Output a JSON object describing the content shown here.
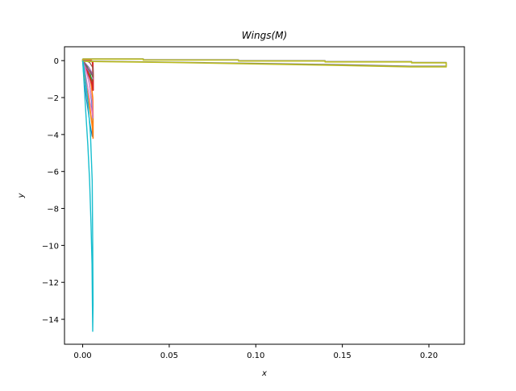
{
  "chart_data": {
    "type": "line",
    "title": "Wings(M)",
    "xlabel": "x",
    "ylabel": "y",
    "xlim": [
      -0.0105,
      0.2205
    ],
    "ylim": [
      -15.35,
      0.75
    ],
    "x_ticks": [
      0.0,
      0.05,
      0.1,
      0.15,
      0.2
    ],
    "x_tick_labels": [
      "0.00",
      "0.05",
      "0.10",
      "0.15",
      "0.20"
    ],
    "y_ticks": [
      0,
      -2,
      -4,
      -6,
      -8,
      -10,
      -12,
      -14
    ],
    "y_tick_labels": [
      "0",
      "−2",
      "−4",
      "−6",
      "−8",
      "−10",
      "−12",
      "−14"
    ],
    "grid": false,
    "legend": "none",
    "series": [
      {
        "color": "#1f77b4",
        "width": 1.2,
        "x": [
          0.0,
          0.0006,
          0.0022,
          0.0042,
          0.0055,
          0.0058,
          0.0052,
          0.0038,
          0.002,
          0.0006,
          0.0
        ],
        "y": [
          0.0,
          -0.8,
          -2.1,
          -3.4,
          -4.1,
          -3.2,
          -2.2,
          -1.2,
          -0.5,
          -0.1,
          0.0
        ]
      },
      {
        "color": "#ff7f0e",
        "width": 1.6,
        "x": [
          0.0,
          0.0008,
          0.0025,
          0.0045,
          0.0056,
          0.006,
          0.006,
          0.0058,
          0.0048,
          0.003,
          0.0012,
          0.0
        ],
        "y": [
          0.0,
          -0.6,
          -1.6,
          -2.8,
          -3.6,
          -4.2,
          -3.0,
          -2.0,
          -1.2,
          -0.5,
          -0.15,
          0.0
        ]
      },
      {
        "color": "#2ca02c",
        "width": 1.2,
        "x": [
          0.0,
          0.002,
          0.004,
          0.0055,
          0.006,
          0.0055,
          0.004,
          0.002,
          0.0
        ],
        "y": [
          0.0,
          -0.3,
          -0.8,
          -1.2,
          -1.4,
          -1.1,
          -0.6,
          -0.2,
          0.0
        ]
      },
      {
        "color": "#d62728",
        "width": 2.0,
        "x": [
          0.0,
          0.002,
          0.004,
          0.0055,
          0.006,
          0.006,
          0.0058,
          0.005,
          0.003,
          0.0012,
          0.0
        ],
        "y": [
          0.0,
          -0.4,
          -0.9,
          -1.3,
          -1.6,
          -0.8,
          -0.1,
          0.0,
          0.0,
          0.0,
          0.0
        ]
      },
      {
        "color": "#9467bd",
        "width": 1.2,
        "x": [
          0.0,
          0.001,
          0.003,
          0.0055,
          0.006,
          0.0056,
          0.0035,
          0.0012,
          0.0
        ],
        "y": [
          0.0,
          -0.2,
          -0.5,
          -0.8,
          -1.0,
          -0.7,
          -0.35,
          -0.1,
          0.0
        ]
      },
      {
        "color": "#8c564b",
        "width": 1.2,
        "x": [
          0.0,
          0.002,
          0.0045,
          0.006,
          0.006,
          0.004,
          0.0015,
          0.0
        ],
        "y": [
          0.0,
          -0.3,
          -0.6,
          -0.9,
          -0.4,
          -0.1,
          0.0,
          0.0
        ]
      },
      {
        "color": "#e377c2",
        "width": 1.2,
        "x": [
          0.0,
          0.0012,
          0.0032,
          0.005,
          0.006,
          0.0055,
          0.0035,
          0.0014,
          0.0
        ],
        "y": [
          0.0,
          -0.5,
          -1.6,
          -2.6,
          -3.1,
          -2.2,
          -1.1,
          -0.35,
          0.0
        ]
      },
      {
        "color": "#7f7f7f",
        "width": 1.4,
        "x": [
          0.0,
          0.035,
          0.035,
          0.09,
          0.09,
          0.14,
          0.14,
          0.19,
          0.19,
          0.21,
          0.21,
          0.19,
          0.15,
          0.1,
          0.05,
          0.0,
          0.0
        ],
        "y": [
          0.1,
          0.1,
          0.05,
          0.05,
          0.0,
          0.0,
          -0.05,
          -0.05,
          -0.1,
          -0.1,
          -0.3,
          -0.3,
          -0.22,
          -0.15,
          -0.08,
          -0.02,
          0.1
        ]
      },
      {
        "color": "#bcbd22",
        "width": 1.6,
        "x": [
          0.0,
          0.035,
          0.035,
          0.09,
          0.09,
          0.14,
          0.14,
          0.19,
          0.19,
          0.21,
          0.21,
          0.19,
          0.15,
          0.1,
          0.05,
          0.0,
          0.0
        ],
        "y": [
          0.08,
          0.08,
          0.03,
          0.03,
          -0.02,
          -0.02,
          -0.07,
          -0.07,
          -0.12,
          -0.12,
          -0.34,
          -0.34,
          -0.26,
          -0.18,
          -0.1,
          -0.04,
          0.08
        ]
      },
      {
        "color": "#17becf",
        "width": 1.4,
        "x": [
          0.0,
          0.0008,
          0.0018,
          0.003,
          0.004,
          0.0048,
          0.0054,
          0.0056,
          0.0058,
          0.006,
          0.0058,
          0.0055,
          0.0045,
          0.003,
          0.0015,
          0.0005,
          0.0
        ],
        "y": [
          0.0,
          -1.2,
          -2.8,
          -4.6,
          -6.5,
          -8.8,
          -11.0,
          -13.0,
          -14.65,
          -13.2,
          -10.0,
          -6.5,
          -4.0,
          -2.2,
          -0.9,
          -0.2,
          0.0
        ]
      }
    ]
  }
}
